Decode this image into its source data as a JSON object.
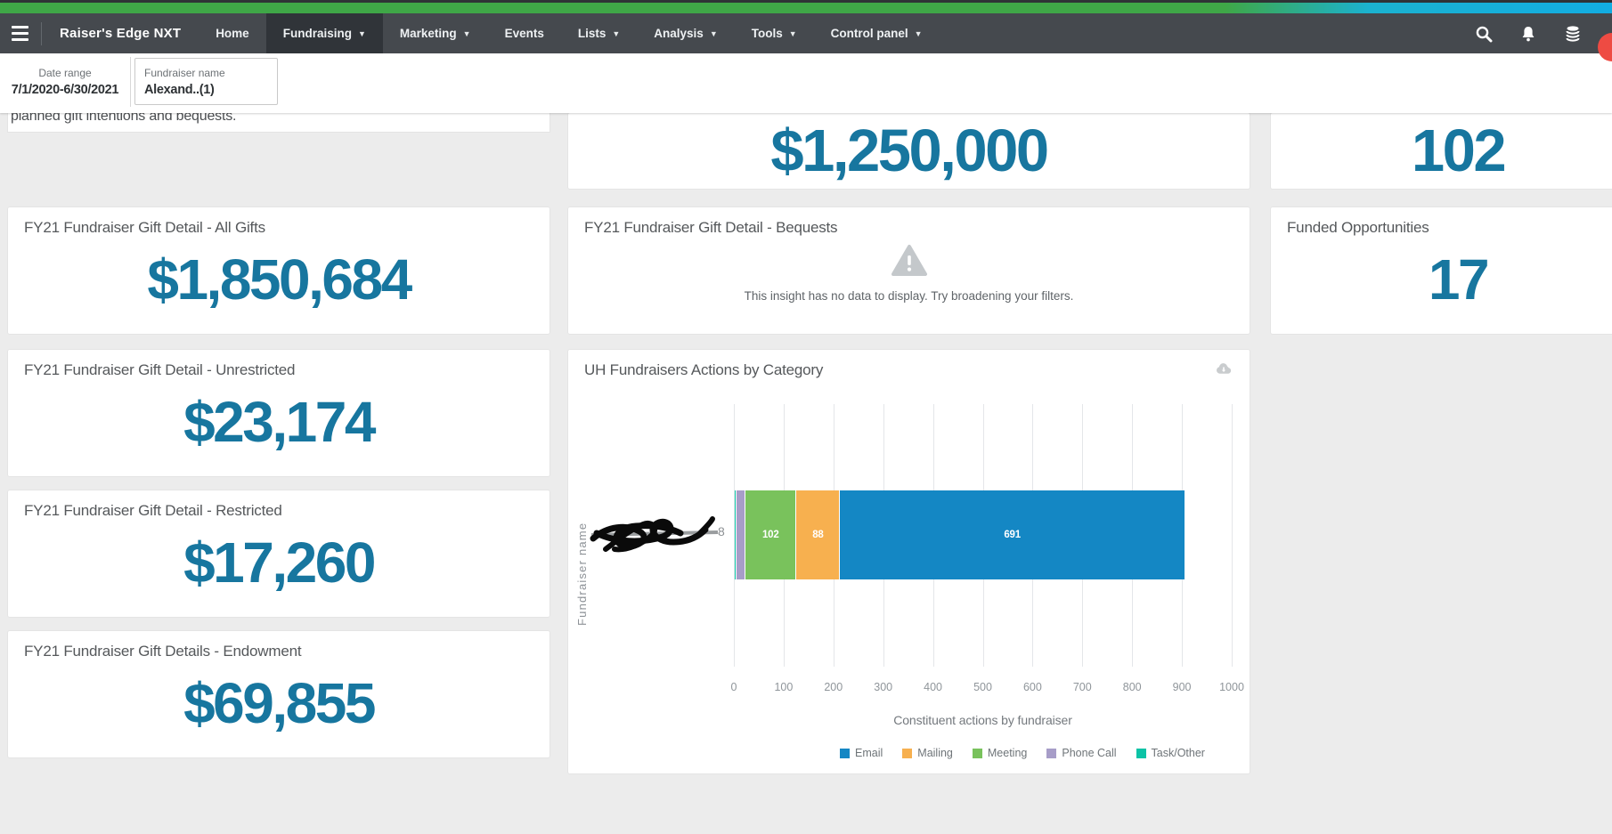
{
  "nav": {
    "brand": "Raiser's Edge NXT",
    "items": [
      {
        "label": "Home",
        "dropdown": false,
        "active": false
      },
      {
        "label": "Fundraising",
        "dropdown": true,
        "active": true
      },
      {
        "label": "Marketing",
        "dropdown": true,
        "active": false
      },
      {
        "label": "Events",
        "dropdown": false,
        "active": false
      },
      {
        "label": "Lists",
        "dropdown": true,
        "active": false
      },
      {
        "label": "Analysis",
        "dropdown": true,
        "active": false
      },
      {
        "label": "Tools",
        "dropdown": true,
        "active": false
      },
      {
        "label": "Control panel",
        "dropdown": true,
        "active": false
      }
    ],
    "right_icons": [
      "search-icon",
      "bell-icon",
      "database-icon",
      "avatar-partial"
    ]
  },
  "filters": {
    "date_range": {
      "label": "Date range",
      "value": "7/1/2020-6/30/2021"
    },
    "fundraiser_name": {
      "label": "Fundraiser name",
      "value": "Alexand..(1)"
    }
  },
  "clipped_card": {
    "text": "planned gift intentions and bequests."
  },
  "kpis": {
    "top_middle": {
      "value": "$1,250,000"
    },
    "top_right": {
      "value": "102"
    },
    "all_gifts": {
      "title": "FY21 Fundraiser Gift Detail - All Gifts",
      "value": "$1,850,684"
    },
    "bequests": {
      "title": "FY21 Fundraiser Gift Detail - Bequests",
      "message": "This insight has no data to display. Try broadening your filters."
    },
    "funded_opportunities": {
      "title": "Funded Opportunities",
      "value": "17"
    },
    "unrestricted": {
      "title": "FY21 Fundraiser Gift Detail - Unrestricted",
      "value": "$23,174"
    },
    "restricted": {
      "title": "FY21 Fundraiser Gift Detail - Restricted",
      "value": "$17,260"
    },
    "endowment": {
      "title": "FY21 Fundraiser Gift Details - Endowment",
      "value": "$69,855"
    }
  },
  "chart_data": {
    "type": "bar",
    "orientation": "horizontal",
    "stacked": true,
    "title": "UH Fundraisers Actions by Category",
    "categories": [
      "(fundraiser name redacted with black scribble)"
    ],
    "series": [
      {
        "name": "Task/Other",
        "values": [
          4
        ],
        "color": "#0cc3a6",
        "estimated": true,
        "label_shown": false
      },
      {
        "name": "Phone Call",
        "values": [
          18
        ],
        "color": "#a79dc8",
        "estimated": true,
        "label_shown": false
      },
      {
        "name": "Meeting",
        "values": [
          102
        ],
        "color": "#79c25c",
        "label_shown": true
      },
      {
        "name": "Mailing",
        "values": [
          88
        ],
        "color": "#f7b04f",
        "label_shown": true
      },
      {
        "name": "Email",
        "values": [
          691
        ],
        "color": "#1487c4",
        "label_shown": true
      }
    ],
    "legend_order": [
      "Email",
      "Mailing",
      "Meeting",
      "Phone Call",
      "Task/Other"
    ],
    "xlabel": "Constituent actions by fundraiser",
    "ylabel": "Fundraiser name",
    "xlim": [
      0,
      1000
    ],
    "xticks": [
      0,
      100,
      200,
      300,
      400,
      500,
      600,
      700,
      800,
      900,
      1000
    ],
    "grid": true,
    "legend_position": "bottom"
  },
  "colors": {
    "accent_number": "#17769f",
    "nav_bg": "#45494e",
    "strip_green": "#3fa747",
    "strip_cyan": "#12ade2",
    "page_bg": "#ececec",
    "warning_icon": "#c4c8cb"
  }
}
